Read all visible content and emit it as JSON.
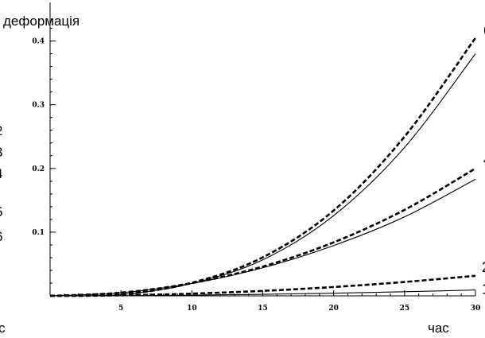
{
  "chart_data": {
    "type": "line",
    "ylabel": "деформація",
    "xlabel": "час",
    "xlim": [
      0,
      30
    ],
    "ylim": [
      0,
      0.42
    ],
    "x_ticks": [
      5,
      10,
      15,
      20,
      25,
      30
    ],
    "y_ticks": [
      0.1,
      0.2,
      0.3,
      0.4
    ],
    "y_tick_labels": [
      "0.1",
      "0.2",
      "0.3",
      "0.4"
    ],
    "x": [
      0,
      5,
      10,
      15,
      20,
      25,
      30
    ],
    "series": [
      {
        "label": "1",
        "style": "solid",
        "values": [
          0,
          0.0003,
          0.0011,
          0.0024,
          0.0042,
          0.0065,
          0.0092
        ]
      },
      {
        "label": "2",
        "style": "dashed",
        "values": [
          0,
          0.0009,
          0.0035,
          0.0078,
          0.0139,
          0.0218,
          0.0315
        ]
      },
      {
        "label": "3",
        "style": "solid",
        "values": [
          0,
          0.0048,
          0.0195,
          0.044,
          0.079,
          0.124,
          0.183
        ]
      },
      {
        "label": "4",
        "style": "dashed",
        "values": [
          0,
          0.005,
          0.02,
          0.046,
          0.084,
          0.135,
          0.2
        ]
      },
      {
        "label": "5",
        "style": "solid",
        "values": [
          0,
          0.002,
          0.0195,
          0.0565,
          0.126,
          0.233,
          0.38
        ]
      },
      {
        "label": "6",
        "style": "dashed",
        "values": [
          0,
          0.0023,
          0.0205,
          0.0605,
          0.134,
          0.25,
          0.405
        ]
      }
    ]
  },
  "edge_fragments": {
    "left_digits": [
      "2",
      "3",
      "4",
      "5",
      "6"
    ],
    "left_bottom": "с"
  },
  "colors": {
    "line": "#000000",
    "background": "#ffffff"
  }
}
